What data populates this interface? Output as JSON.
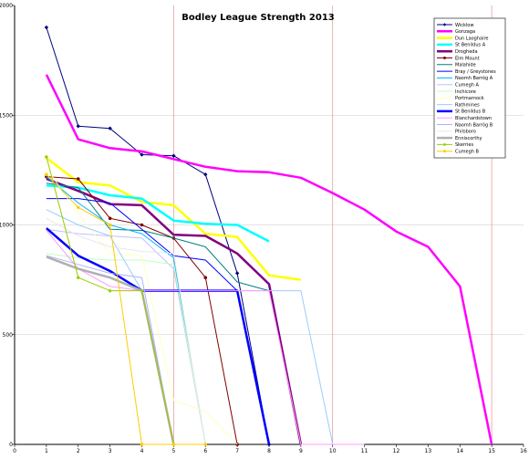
{
  "chart_data": {
    "type": "line",
    "title": "Bodley League Strength 2013",
    "xlabel": "",
    "ylabel": "",
    "xlim": [
      0,
      16
    ],
    "ylim": [
      0,
      2000
    ],
    "xticks": [
      0,
      1,
      2,
      3,
      4,
      5,
      6,
      7,
      8,
      9,
      10,
      11,
      12,
      13,
      14,
      15,
      16
    ],
    "yticks": [
      0,
      500,
      1000,
      1500,
      2000
    ],
    "grid": "vertical lines at x=5, 10, 15; horizontal lines at y=500, 1000, 1500",
    "legend_position": "top-right",
    "series": [
      {
        "name": "Wicklow",
        "color": "#000080",
        "width": 1,
        "marker": "diamond",
        "points": [
          [
            1,
            1900
          ],
          [
            2,
            1450
          ],
          [
            3,
            1440
          ],
          [
            4,
            1320
          ],
          [
            5,
            1315
          ],
          [
            6,
            1230
          ],
          [
            7,
            780
          ],
          [
            8,
            0
          ]
        ]
      },
      {
        "name": "Gonzaga",
        "color": "#ff00ff",
        "width": 2.5,
        "marker": "none",
        "points": [
          [
            1,
            1685
          ],
          [
            2,
            1390
          ],
          [
            3,
            1350
          ],
          [
            4,
            1335
          ],
          [
            5,
            1300
          ],
          [
            6,
            1265
          ],
          [
            7,
            1245
          ],
          [
            8,
            1240
          ],
          [
            9,
            1215
          ],
          [
            10,
            1145
          ],
          [
            11,
            1070
          ],
          [
            12,
            970
          ],
          [
            13,
            900
          ],
          [
            14,
            720
          ],
          [
            15,
            0
          ]
        ]
      },
      {
        "name": "Dun Laoghaire",
        "color": "#ffff00",
        "width": 2.5,
        "marker": "none",
        "points": [
          [
            1,
            1305
          ],
          [
            2,
            1195
          ],
          [
            3,
            1180
          ],
          [
            4,
            1105
          ],
          [
            5,
            1090
          ],
          [
            6,
            960
          ],
          [
            7,
            945
          ],
          [
            8,
            770
          ],
          [
            9,
            750
          ]
        ]
      },
      {
        "name": "St Benildus A",
        "color": "#00ffff",
        "width": 2.5,
        "marker": "none",
        "points": [
          [
            1,
            1180
          ],
          [
            2,
            1170
          ],
          [
            3,
            1135
          ],
          [
            4,
            1120
          ],
          [
            5,
            1020
          ],
          [
            6,
            1005
          ],
          [
            7,
            1000
          ],
          [
            8,
            925
          ]
        ]
      },
      {
        "name": "Drogheda",
        "color": "#800080",
        "width": 2.5,
        "marker": "none",
        "points": [
          [
            1,
            1210
          ],
          [
            2,
            1155
          ],
          [
            3,
            1095
          ],
          [
            4,
            1090
          ],
          [
            5,
            955
          ],
          [
            6,
            950
          ],
          [
            7,
            870
          ],
          [
            8,
            730
          ],
          [
            9,
            0
          ]
        ]
      },
      {
        "name": "Elm Mount",
        "color": "#800000",
        "width": 1,
        "marker": "circle",
        "points": [
          [
            1,
            1220
          ],
          [
            2,
            1210
          ],
          [
            3,
            1030
          ],
          [
            4,
            1000
          ],
          [
            5,
            940
          ],
          [
            6,
            760
          ],
          [
            7,
            0
          ]
        ]
      },
      {
        "name": "Malahide",
        "color": "#008080",
        "width": 1,
        "marker": "none",
        "points": [
          [
            1,
            1190
          ],
          [
            2,
            1170
          ],
          [
            3,
            980
          ],
          [
            4,
            975
          ],
          [
            5,
            940
          ],
          [
            6,
            900
          ],
          [
            7,
            740
          ],
          [
            8,
            700
          ]
        ]
      },
      {
        "name": "Bray / Greystones",
        "color": "#0000ff",
        "width": 1,
        "marker": "none",
        "points": [
          [
            1,
            1120
          ],
          [
            2,
            1120
          ],
          [
            3,
            1100
          ],
          [
            4,
            980
          ],
          [
            5,
            860
          ],
          [
            6,
            840
          ],
          [
            7,
            700
          ],
          [
            8,
            0
          ]
        ]
      },
      {
        "name": "Naomh Barróg A",
        "color": "#00b0ff",
        "width": 1,
        "marker": "none",
        "points": [
          [
            1,
            1220
          ],
          [
            2,
            1100
          ],
          [
            3,
            1000
          ],
          [
            4,
            960
          ],
          [
            5,
            850
          ],
          [
            6,
            0
          ]
        ]
      },
      {
        "name": "Cumegh A",
        "color": "#c0c0ff",
        "width": 1,
        "marker": "none",
        "points": [
          [
            1,
            980
          ],
          [
            2,
            960
          ],
          [
            3,
            950
          ],
          [
            4,
            940
          ],
          [
            5,
            800
          ],
          [
            6,
            0
          ]
        ]
      },
      {
        "name": "Inchicore",
        "color": "#c0ffc0",
        "width": 1,
        "marker": "none",
        "points": [
          [
            1,
            870
          ],
          [
            2,
            850
          ],
          [
            3,
            840
          ],
          [
            4,
            840
          ],
          [
            5,
            820
          ],
          [
            6,
            0
          ]
        ]
      },
      {
        "name": "Portmarnock",
        "color": "#ffffc0",
        "width": 1,
        "marker": "none",
        "points": [
          [
            1,
            1260
          ],
          [
            2,
            1050
          ],
          [
            3,
            870
          ],
          [
            4,
            860
          ],
          [
            5,
            200
          ],
          [
            6,
            150
          ],
          [
            7,
            0
          ]
        ]
      },
      {
        "name": "Rathmines",
        "color": "#99ccff",
        "width": 1,
        "marker": "none",
        "points": [
          [
            1,
            1070
          ],
          [
            2,
            1000
          ],
          [
            3,
            950
          ],
          [
            4,
            700
          ],
          [
            5,
            700
          ],
          [
            6,
            700
          ],
          [
            7,
            700
          ],
          [
            8,
            700
          ],
          [
            9,
            700
          ],
          [
            10,
            0
          ]
        ]
      },
      {
        "name": "St Benildus B",
        "color": "#0000ff",
        "width": 2.5,
        "marker": "none",
        "points": [
          [
            1,
            985
          ],
          [
            2,
            860
          ],
          [
            3,
            790
          ],
          [
            4,
            700
          ],
          [
            5,
            700
          ],
          [
            6,
            700
          ],
          [
            7,
            700
          ],
          [
            8,
            0
          ]
        ]
      },
      {
        "name": "Blanchardstown",
        "color": "#ff99ff",
        "width": 1,
        "marker": "none",
        "points": [
          [
            1,
            975
          ],
          [
            2,
            800
          ],
          [
            3,
            720
          ],
          [
            4,
            700
          ],
          [
            5,
            700
          ],
          [
            6,
            700
          ],
          [
            7,
            700
          ],
          [
            8,
            700
          ],
          [
            9,
            0
          ],
          [
            10,
            0
          ],
          [
            11,
            0
          ]
        ]
      },
      {
        "name": "Naomh Barróg B",
        "color": "#b0b0ff",
        "width": 1,
        "marker": "none",
        "points": [
          [
            1,
            860
          ],
          [
            2,
            820
          ],
          [
            3,
            780
          ],
          [
            4,
            760
          ],
          [
            5,
            0
          ]
        ]
      },
      {
        "name": "Philsboro",
        "color": "#e8e8e8",
        "width": 1,
        "marker": "none",
        "points": [
          [
            1,
            1030
          ],
          [
            2,
            950
          ],
          [
            3,
            900
          ],
          [
            4,
            880
          ],
          [
            5,
            870
          ],
          [
            6,
            0
          ]
        ]
      },
      {
        "name": "Enniscorthy",
        "color": "#b0b0b0",
        "width": 2.5,
        "marker": "none",
        "points": [
          [
            1,
            855
          ],
          [
            2,
            800
          ],
          [
            3,
            760
          ],
          [
            4,
            700
          ],
          [
            5,
            0
          ]
        ]
      },
      {
        "name": "Skerries",
        "color": "#99cc00",
        "width": 1,
        "marker": "diamond",
        "points": [
          [
            1,
            1310
          ],
          [
            2,
            760
          ],
          [
            3,
            700
          ],
          [
            4,
            700
          ],
          [
            5,
            0
          ]
        ]
      },
      {
        "name": "Cumegh B",
        "color": "#ffcc00",
        "width": 1,
        "marker": "circle",
        "points": [
          [
            1,
            1230
          ],
          [
            2,
            1080
          ],
          [
            3,
            1000
          ],
          [
            4,
            0
          ],
          [
            5,
            0
          ],
          [
            6,
            0
          ]
        ]
      }
    ]
  }
}
